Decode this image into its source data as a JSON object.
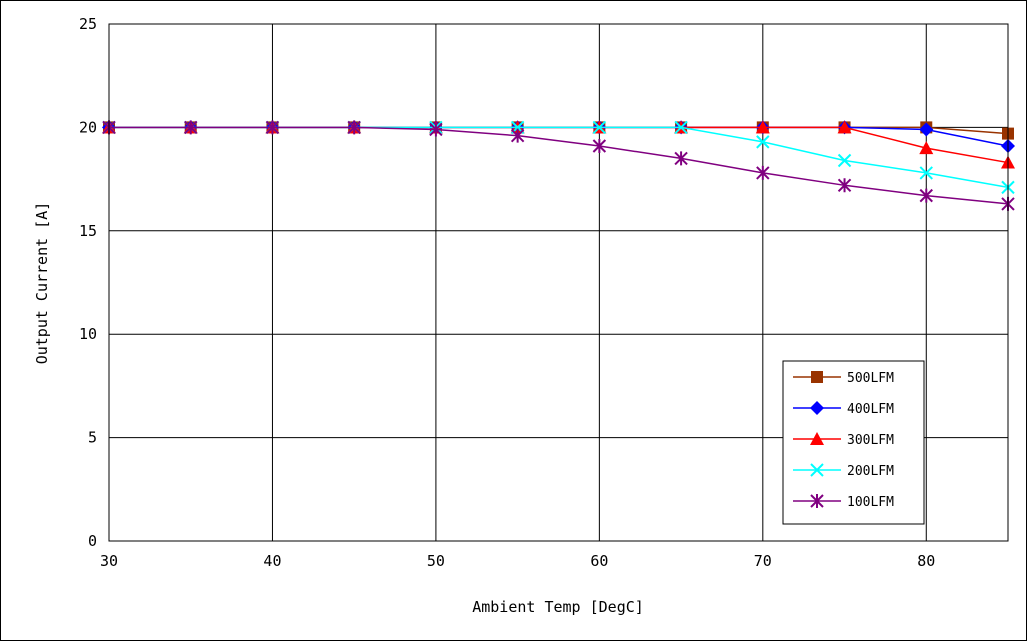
{
  "chart_data": {
    "type": "line",
    "title": "",
    "xlabel": "Ambient Temp [DegC]",
    "ylabel": "Output Current [A]",
    "xlim": [
      30,
      85
    ],
    "ylim": [
      0,
      25
    ],
    "xticks": [
      30,
      40,
      50,
      60,
      70,
      80
    ],
    "yticks": [
      0,
      5,
      10,
      15,
      20,
      25
    ],
    "grid": true,
    "legend_position": "lower-right",
    "series": [
      {
        "name": "500LFM",
        "color": "#993300",
        "marker": "square",
        "x": [
          30,
          35,
          40,
          45,
          50,
          55,
          60,
          65,
          70,
          75,
          80,
          85
        ],
        "y": [
          20,
          20,
          20,
          20,
          20,
          20,
          20,
          20,
          20,
          20,
          20,
          19.7
        ]
      },
      {
        "name": "400LFM",
        "color": "#0000ff",
        "marker": "diamond",
        "x": [
          30,
          35,
          40,
          45,
          50,
          55,
          60,
          65,
          70,
          75,
          80,
          85
        ],
        "y": [
          20,
          20,
          20,
          20,
          20,
          20,
          20,
          20,
          20,
          20,
          19.9,
          19.1
        ]
      },
      {
        "name": "300LFM",
        "color": "#ff0000",
        "marker": "triangle",
        "x": [
          30,
          35,
          40,
          45,
          50,
          55,
          60,
          65,
          70,
          75,
          80,
          85
        ],
        "y": [
          20,
          20,
          20,
          20,
          20,
          20,
          20,
          20,
          20,
          20,
          19.0,
          18.3
        ]
      },
      {
        "name": "200LFM",
        "color": "#00ffff",
        "marker": "x",
        "x": [
          30,
          35,
          40,
          45,
          50,
          55,
          60,
          65,
          70,
          75,
          80,
          85
        ],
        "y": [
          20,
          20,
          20,
          20,
          20,
          20,
          20,
          20,
          19.3,
          18.4,
          17.8,
          17.1
        ]
      },
      {
        "name": "100LFM",
        "color": "#800080",
        "marker": "star",
        "x": [
          30,
          35,
          40,
          45,
          50,
          55,
          60,
          65,
          70,
          75,
          80,
          85
        ],
        "y": [
          20,
          20,
          20,
          20,
          19.9,
          19.6,
          19.1,
          18.5,
          17.8,
          17.2,
          16.7,
          16.3
        ]
      }
    ]
  }
}
